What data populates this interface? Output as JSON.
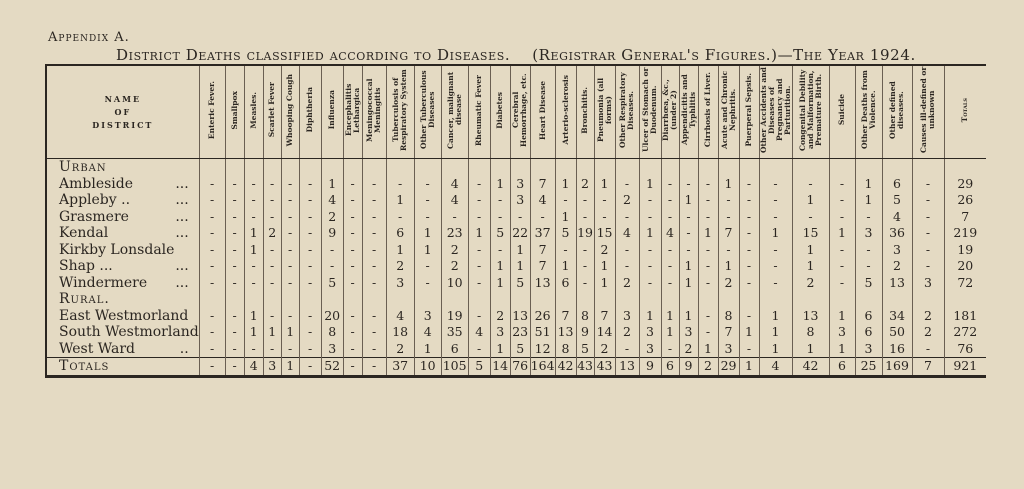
{
  "appendix_label": "Appendix A.",
  "title": {
    "main": "District Deaths classified according to Diseases.",
    "source": "(Registrar General's Figures.)—The Year 1924."
  },
  "table": {
    "district_header": [
      "NAME",
      "OF",
      "DISTRICT"
    ],
    "columns": [
      "Enteric Fever.",
      "Smallpox",
      "Measles.",
      "Scarlet Fever",
      "Whooping Cough",
      "Diphtheria",
      "Influenza",
      "Encephalitis Lethargica",
      "Meningococcal Meningitis",
      "Tuberculosis of Respiratory System",
      "Other Tuberculous Diseases",
      "Cancer, malignant disease",
      "Rheumatic Fever",
      "Diabetes",
      "Cerebral Hemorrhage, etc.",
      "Heart Disease",
      "Arterio-sclerosis",
      "Bronchitis.",
      "Pneumonia (all forms)",
      "Other Respiratory Diseases.",
      "Ulcer of Stomach or Duodenum.",
      "Diarrhœa, &c., (under 2)",
      "Appendicitis and Typhlitis",
      "Cirrhosis of Liver.",
      "Acute and Chronic Nephritis.",
      "Puerperal Sepsis.",
      "Other Accidents and Diseases of Pregnancy and Parturition.",
      "Congenital Debility and Malformation, Premature Birth.",
      "Suicide",
      "Other Deaths from Violence.",
      "Other defined diseases.",
      "Causes ill-defined or unknown",
      "Totals"
    ],
    "sections": [
      {
        "label": "Urban",
        "rows": [
          {
            "district": "Ambleside",
            "dots": "...",
            "values": [
              "-",
              "-",
              "-",
              "-",
              "-",
              "-",
              "1",
              "-",
              "-",
              "-",
              "-",
              "4",
              "-",
              "1",
              "3",
              "7",
              "1",
              "2",
              "1",
              "-",
              "1",
              "-",
              "-",
              "-",
              "1",
              "-",
              "-",
              "-",
              "-",
              "1",
              "6",
              "-",
              "29"
            ]
          },
          {
            "district": "Appleby ..",
            "dots": "...",
            "values": [
              "-",
              "-",
              "-",
              "-",
              "-",
              "-",
              "4",
              "-",
              "-",
              "1",
              "-",
              "4",
              "-",
              "-",
              "3",
              "4",
              "-",
              "-",
              "-",
              "2",
              "-",
              "-",
              "1",
              "-",
              "-",
              "-",
              "-",
              "1",
              "-",
              "1",
              "5",
              "-",
              "26"
            ]
          },
          {
            "district": "Grasmere",
            "dots": "...",
            "values": [
              "-",
              "-",
              "-",
              "-",
              "-",
              "-",
              "2",
              "-",
              "-",
              "-",
              "-",
              "-",
              "-",
              "-",
              "-",
              "-",
              "1",
              "-",
              "-",
              "-",
              "-",
              "-",
              "-",
              "-",
              "-",
              "-",
              "-",
              "-",
              "-",
              "-",
              "4",
              "-",
              "7"
            ]
          },
          {
            "district": "Kendal",
            "dots": "...",
            "values": [
              "-",
              "-",
              "1",
              "2",
              "-",
              "-",
              "9",
              "-",
              "-",
              "6",
              "1",
              "23",
              "1",
              "5",
              "22",
              "37",
              "5",
              "19",
              "15",
              "4",
              "1",
              "4",
              "-",
              "1",
              "7",
              "-",
              "1",
              "15",
              "1",
              "3",
              "36",
              "-",
              "219"
            ]
          },
          {
            "district": "Kirkby Lonsdale",
            "dots": "",
            "values": [
              "-",
              "-",
              "1",
              "-",
              "-",
              "-",
              "-",
              "-",
              "-",
              "1",
              "1",
              "2",
              "-",
              "-",
              "1",
              "7",
              "-",
              "-",
              "2",
              "-",
              "-",
              "-",
              "-",
              "-",
              "-",
              "-",
              "-",
              "1",
              "-",
              "-",
              "3",
              "-",
              "19"
            ]
          },
          {
            "district": "Shap ...",
            "dots": "...",
            "values": [
              "-",
              "-",
              "-",
              "-",
              "-",
              "-",
              "-",
              "-",
              "-",
              "2",
              "-",
              "2",
              "-",
              "1",
              "1",
              "7",
              "1",
              "-",
              "1",
              "-",
              "-",
              "-",
              "1",
              "-",
              "1",
              "-",
              "-",
              "1",
              "-",
              "-",
              "2",
              "-",
              "20"
            ]
          },
          {
            "district": "Windermere",
            "dots": "...",
            "values": [
              "-",
              "-",
              "-",
              "-",
              "-",
              "-",
              "5",
              "-",
              "-",
              "3",
              "-",
              "10",
              "-",
              "1",
              "5",
              "13",
              "6",
              "-",
              "1",
              "2",
              "-",
              "-",
              "1",
              "-",
              "2",
              "-",
              "-",
              "2",
              "-",
              "5",
              "13",
              "3",
              "72"
            ]
          }
        ]
      },
      {
        "label": "Rural.",
        "rows": [
          {
            "district": "East Westmorland",
            "dots": "",
            "values": [
              "-",
              "-",
              "1",
              "-",
              "-",
              "-",
              "20",
              "-",
              "-",
              "4",
              "3",
              "19",
              "-",
              "2",
              "13",
              "26",
              "7",
              "8",
              "7",
              "3",
              "1",
              "1",
              "1",
              "-",
              "8",
              "-",
              "1",
              "13",
              "1",
              "6",
              "34",
              "2",
              "181"
            ]
          },
          {
            "district": "South Westmorland",
            "dots": "",
            "values": [
              "-",
              "-",
              "1",
              "1",
              "1",
              "-",
              "8",
              "-",
              "-",
              "18",
              "4",
              "35",
              "4",
              "3",
              "23",
              "51",
              "13",
              "9",
              "14",
              "2",
              "3",
              "1",
              "3",
              "-",
              "7",
              "1",
              "1",
              "8",
              "3",
              "6",
              "50",
              "2",
              "272"
            ]
          },
          {
            "district": "West Ward",
            "dots": "..",
            "values": [
              "-",
              "-",
              "-",
              "-",
              "-",
              "-",
              "3",
              "-",
              "-",
              "2",
              "1",
              "6",
              "-",
              "1",
              "5",
              "12",
              "8",
              "5",
              "2",
              "-",
              "3",
              "-",
              "2",
              "1",
              "3",
              "-",
              "1",
              "1",
              "1",
              "3",
              "16",
              "-",
              "76"
            ]
          }
        ]
      }
    ],
    "totals": {
      "label": "Totals",
      "values": [
        "-",
        "-",
        "4",
        "3",
        "1",
        "-",
        "52",
        "-",
        "-",
        "37",
        "10",
        "105",
        "5",
        "14",
        "76",
        "164",
        "42",
        "43",
        "43",
        "13",
        "9",
        "6",
        "9",
        "2",
        "29",
        "1",
        "4",
        "42",
        "6",
        "25",
        "169",
        "7",
        "921"
      ]
    }
  }
}
